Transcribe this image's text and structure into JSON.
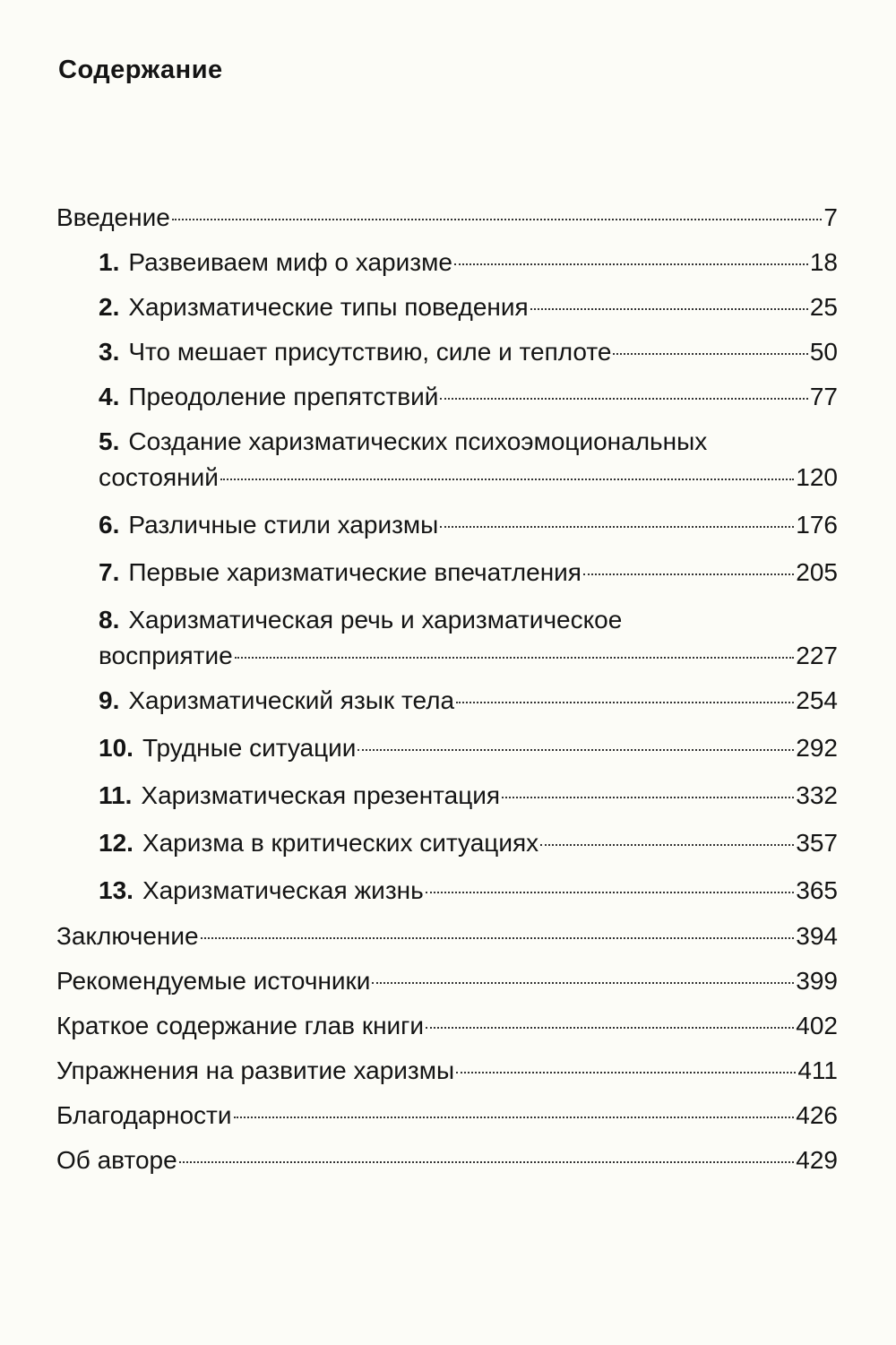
{
  "title": "Содержание",
  "entries": [
    {
      "number": "",
      "label": "Введение",
      "page": "7"
    },
    {
      "number": "1.",
      "label": "Развеиваем миф о харизме",
      "page": "18"
    },
    {
      "number": "2.",
      "label": "Харизматические типы поведения",
      "page": "25"
    },
    {
      "number": "3.",
      "label": "Что мешает присутствию, силе и теплоте",
      "page": "50"
    },
    {
      "number": "4.",
      "label": "Преодоление препятствий",
      "page": "77"
    },
    {
      "number": "5.",
      "label": "Создание харизматических психоэмоциональных",
      "label_cont": "состояний",
      "page": "120"
    },
    {
      "number": "6.",
      "label": "Различные стили харизмы",
      "page": "176"
    },
    {
      "number": "7.",
      "label": "Первые харизматические впечатления",
      "page": "205"
    },
    {
      "number": "8.",
      "label": "Харизматическая речь и харизматическое",
      "label_cont": "восприятие",
      "page": "227"
    },
    {
      "number": "9.",
      "label": "Харизматический язык тела",
      "page": "254"
    },
    {
      "number": "10.",
      "label": "Трудные ситуации",
      "page": "292"
    },
    {
      "number": "11.",
      "label": "Харизматическая презентация",
      "page": "332"
    },
    {
      "number": "12.",
      "label": "Харизма в критических ситуациях",
      "page": "357"
    },
    {
      "number": "13.",
      "label": "Харизматическая жизнь",
      "page": "365"
    },
    {
      "number": "",
      "label": "Заключение",
      "page": "394"
    },
    {
      "number": "",
      "label": "Рекомендуемые источники",
      "page": "399"
    },
    {
      "number": "",
      "label": "Краткое содержание глав книги",
      "page": "402"
    },
    {
      "number": "",
      "label": "Упражнения на развитие харизмы",
      "page": "411"
    },
    {
      "number": "",
      "label": "Благодарности",
      "page": "426"
    },
    {
      "number": "",
      "label": "Об авторе",
      "page": "429"
    }
  ]
}
